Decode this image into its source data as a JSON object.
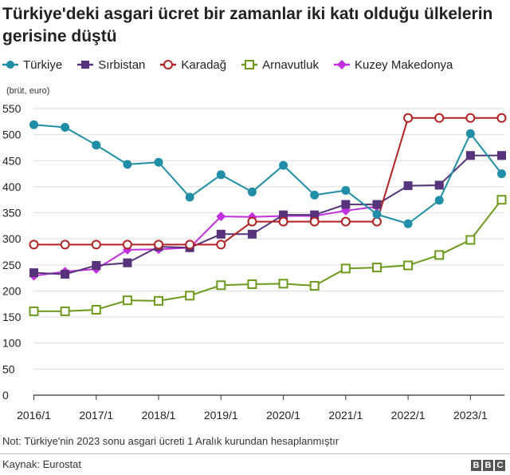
{
  "title": "Türkiye'deki asgari ücret bir zamanlar iki katı olduğu ülkelerin gerisine düştü",
  "unit_label": "(brüt, euro)",
  "note": "Not: Türkiye'nin 2023 sonu asgari ücreti 1 Aralık kurundan hesaplanmıştır",
  "source": "Kaynak: Eurostat",
  "logo": [
    "B",
    "B",
    "C"
  ],
  "chart_data": {
    "type": "line",
    "x": [
      "2016/1",
      "2016/2",
      "2017/1",
      "2017/2",
      "2018/1",
      "2018/2",
      "2019/1",
      "2019/2",
      "2020/1",
      "2020/2",
      "2021/1",
      "2021/2",
      "2022/1",
      "2022/2",
      "2023/1",
      "2023/2"
    ],
    "x_tick_labels": [
      "2016/1",
      "2017/1",
      "2018/1",
      "2019/1",
      "2020/1",
      "2021/1",
      "2022/1",
      "2023/1"
    ],
    "ylim": [
      0,
      550
    ],
    "yticks": [
      0,
      50,
      100,
      150,
      200,
      250,
      300,
      350,
      400,
      450,
      500,
      550
    ],
    "grid": true,
    "legend_position": "top-left",
    "series": [
      {
        "name": "Türkiye",
        "color": "#1f8ea6",
        "marker": "circle-filled",
        "values": [
          519,
          514,
          480,
          443,
          447,
          380,
          423,
          390,
          441,
          384,
          393,
          347,
          329,
          374,
          502,
          425
        ]
      },
      {
        "name": "Sırbistan",
        "color": "#56337a",
        "marker": "square-filled",
        "values": [
          235,
          232,
          249,
          254,
          285,
          283,
          309,
          309,
          346,
          346,
          366,
          366,
          402,
          403,
          460,
          460
        ]
      },
      {
        "name": "Karadağ",
        "color": "#b22222",
        "marker": "circle-open",
        "values": [
          289,
          289,
          289,
          289,
          289,
          289,
          289,
          333,
          333,
          333,
          333,
          333,
          532,
          532,
          532,
          532
        ]
      },
      {
        "name": "Arnavutluk",
        "color": "#6c9a1c",
        "marker": "square-open",
        "values": [
          161,
          161,
          164,
          182,
          181,
          191,
          211,
          213,
          214,
          210,
          243,
          245,
          249,
          269,
          298,
          375
        ]
      },
      {
        "name": "Kuzey Makedonya",
        "color": "#c12fe0",
        "marker": "diamond-filled",
        "values": [
          229,
          237,
          242,
          279,
          280,
          283,
          343,
          342,
          344,
          344,
          354,
          362,
          null,
          null,
          null,
          null
        ]
      }
    ]
  }
}
